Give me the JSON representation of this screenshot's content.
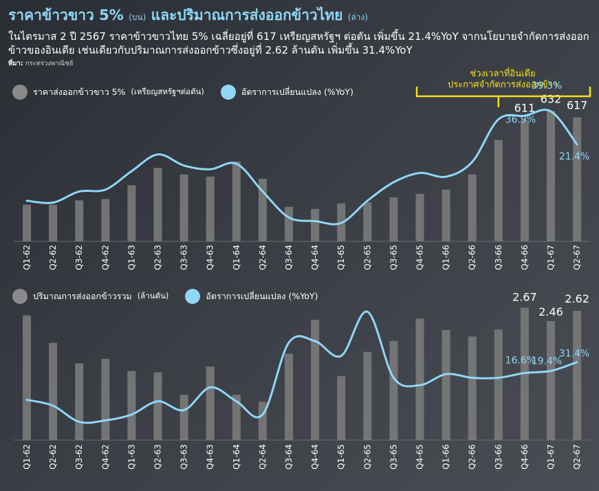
{
  "header": {
    "title_main": "ราคาข้าวขาว 5%",
    "title_main_tag": "(บน)",
    "title_second": "และปริมาณการส่งออกข้าวไทย",
    "title_second_tag": "(ล่าง)",
    "subtitle": "ในไตรมาส 2 ปี 2567 ราคาข้าวขาวไทย 5% เฉลี่ยอยู่ที่ 617 เหรียญสหรัฐฯ ต่อตัน เพิ่มขึ้น 21.4%YoY จากนโยบายจำกัดการส่งออกข้าวของอินเดีย เช่นเดียวกับปริมาณการส่งออกข้าวซึ่งอยู่ที่ 2.62 ล้านตัน เพิ่มขึ้น 31.4%YoY",
    "source_label": "ที่มา:",
    "source_value": "กระทรวงพาณิชย์"
  },
  "annotation": {
    "line1": "ช่วงเวลาที่อินเดีย",
    "line2": "ประกาศจำกัดการส่งออกข้าว"
  },
  "colors": {
    "bar": "#7a7a7a",
    "line": "#8fd8f8",
    "bracket": "#f5e11a",
    "title": "#8fd8f8"
  },
  "chart_data": [
    {
      "type": "bar",
      "categories": [
        "Q1-62",
        "Q2-62",
        "Q3-62",
        "Q4-62",
        "Q1-63",
        "Q2-63",
        "Q3-63",
        "Q4-63",
        "Q1-64",
        "Q2-64",
        "Q3-64",
        "Q4-64",
        "Q1-65",
        "Q2-65",
        "Q3-65",
        "Q4-65",
        "Q1-66",
        "Q2-66",
        "Q3-66",
        "Q4-66",
        "Q1-67",
        "Q2-67"
      ],
      "legend": {
        "bar_label": "ราคาส่งออกข้าวขาว 5%",
        "bar_unit": "(เหรียญสหรัฐฯต่อตัน)",
        "line_label": "อัตราการเปลี่ยนแปลง (%YoY)"
      },
      "series": [
        {
          "name": "ราคาส่งออกข้าวขาว 5%",
          "type": "bar",
          "values": [
            415,
            415,
            425,
            428,
            460,
            500,
            485,
            480,
            515,
            475,
            410,
            405,
            418,
            420,
            432,
            440,
            450,
            485,
            565,
            611,
            632,
            617
          ]
        },
        {
          "name": "อัตราการเปลี่ยนแปลง (%YoY)",
          "type": "line",
          "values": [
            -9.0,
            -10.0,
            -4.0,
            -3.0,
            7.0,
            16.0,
            10.0,
            8.0,
            11.0,
            -4.0,
            -18.0,
            -20.0,
            -21.0,
            -9.0,
            1.0,
            6.0,
            4.0,
            12.0,
            35.0,
            36.9,
            39.3,
            21.4
          ]
        }
      ],
      "labels": {
        "bars": [
          {
            "index": 19,
            "text": "611"
          },
          {
            "index": 20,
            "text": "632"
          },
          {
            "index": 21,
            "text": "617"
          }
        ],
        "line": [
          {
            "index": 19,
            "text": "36.9%"
          },
          {
            "index": 20,
            "text": "39.3%"
          },
          {
            "index": 21,
            "text": "21.4%"
          }
        ]
      }
    },
    {
      "type": "bar",
      "categories": [
        "Q1-62",
        "Q2-62",
        "Q3-62",
        "Q4-62",
        "Q1-63",
        "Q2-63",
        "Q3-63",
        "Q4-63",
        "Q1-64",
        "Q2-64",
        "Q3-64",
        "Q4-64",
        "Q1-65",
        "Q2-65",
        "Q3-65",
        "Q4-65",
        "Q1-66",
        "Q2-66",
        "Q3-66",
        "Q4-66",
        "Q1-67",
        "Q2-67"
      ],
      "legend": {
        "bar_label": "ปริมาณการส่งออกข้าวรวม",
        "bar_unit": "(ล้านตัน)",
        "line_label": "อัตราการเปลี่ยนแปลง (%YoY)"
      },
      "series": [
        {
          "name": "ปริมาณการส่งออกข้าวรวม",
          "type": "bar",
          "values": [
            2.55,
            2.12,
            1.8,
            1.87,
            1.68,
            1.66,
            1.31,
            1.75,
            1.31,
            1.2,
            1.95,
            2.48,
            1.6,
            1.98,
            2.15,
            2.5,
            2.32,
            2.22,
            2.33,
            2.67,
            2.46,
            2.62
          ]
        },
        {
          "name": "อัตราการเปลี่ยนแปลง (%YoY)",
          "type": "line",
          "values": [
            -20,
            -28,
            -50,
            -48,
            -40,
            -22,
            -34,
            -3,
            -22,
            -40,
            58,
            60,
            40,
            100,
            10,
            0,
            15,
            10,
            10,
            16.6,
            19.4,
            31.4
          ]
        }
      ],
      "labels": {
        "bars": [
          {
            "index": 19,
            "text": "2.67"
          },
          {
            "index": 20,
            "text": "2.46"
          },
          {
            "index": 21,
            "text": "2.62"
          }
        ],
        "line": [
          {
            "index": 19,
            "text": "16.6%"
          },
          {
            "index": 20,
            "text": "19.4%"
          },
          {
            "index": 21,
            "text": "31.4%"
          }
        ]
      }
    }
  ]
}
